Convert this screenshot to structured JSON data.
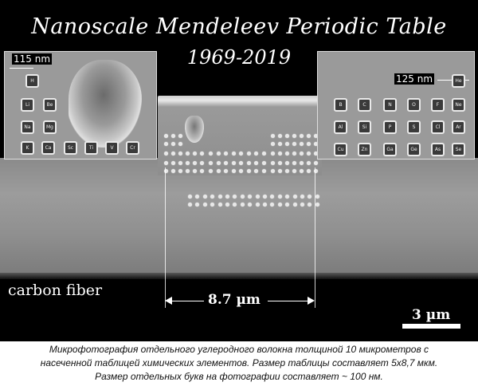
{
  "title": "Nanoscale Mendeleev Periodic Table",
  "years": "1969-2019",
  "inset_left": {
    "size_label": "115 nm",
    "elements": [
      "H",
      "Li",
      "Be",
      "Na",
      "Mg",
      "K",
      "Ca",
      "Sc",
      "Ti",
      "V",
      "Cr"
    ]
  },
  "inset_right": {
    "size_label": "125 nm",
    "elements": [
      "He",
      "B",
      "C",
      "N",
      "O",
      "F",
      "Ne",
      "Al",
      "Si",
      "P",
      "S",
      "Cl",
      "Ar",
      "Cu",
      "Zn",
      "Ga",
      "Ge",
      "As",
      "Se"
    ]
  },
  "fiber_label": "carbon fiber",
  "table_width_label": "8.7 µm",
  "scale_bar_label": "3 µm",
  "caption": [
    "Микрофотография отдельного углеродного волокна толщиной 10 микрометров с",
    "насеченной таблицей химических элементов. Размер таблицы составляет 5х8,7 мкм.",
    "Размер отдельных букв на фотографии составляет ~ 100 нм."
  ]
}
